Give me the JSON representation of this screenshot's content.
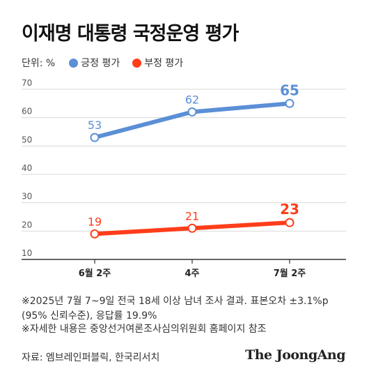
{
  "title": "이재명 대통령 국정운영 평가",
  "legend": {
    "unit": "단위: %",
    "positive": "긍정 평가",
    "negative": "부정 평가"
  },
  "colors": {
    "positive": "#5b8fd6",
    "negative": "#ff3d1a",
    "grid": "#d8d8d8",
    "axis": "#333333"
  },
  "chart_data": {
    "type": "line",
    "categories": [
      "6월 2주",
      "4주",
      "7월 2주"
    ],
    "series": [
      {
        "name": "긍정 평가",
        "values": [
          53,
          62,
          65
        ]
      },
      {
        "name": "부정 평가",
        "values": [
          19,
          21,
          23
        ]
      }
    ],
    "ylim": [
      10,
      70
    ],
    "yticks": [
      10,
      20,
      30,
      40,
      50,
      60,
      70
    ],
    "grid": true,
    "legend_position": "top-left"
  },
  "notes": {
    "line1": "※2025년 7월 7~9일 전국 18세 이상 남녀 조사 결과. 표본오차 ±3.1%p",
    "line2": "(95% 신뢰수준), 응답률 19.9%",
    "line3": "※자세한 내용은 중앙선거여론조사심의위원회 홈페이지 참조"
  },
  "source": "자료: 엠브레인퍼블릭, 한국리서치",
  "brand": "The JoongAng"
}
